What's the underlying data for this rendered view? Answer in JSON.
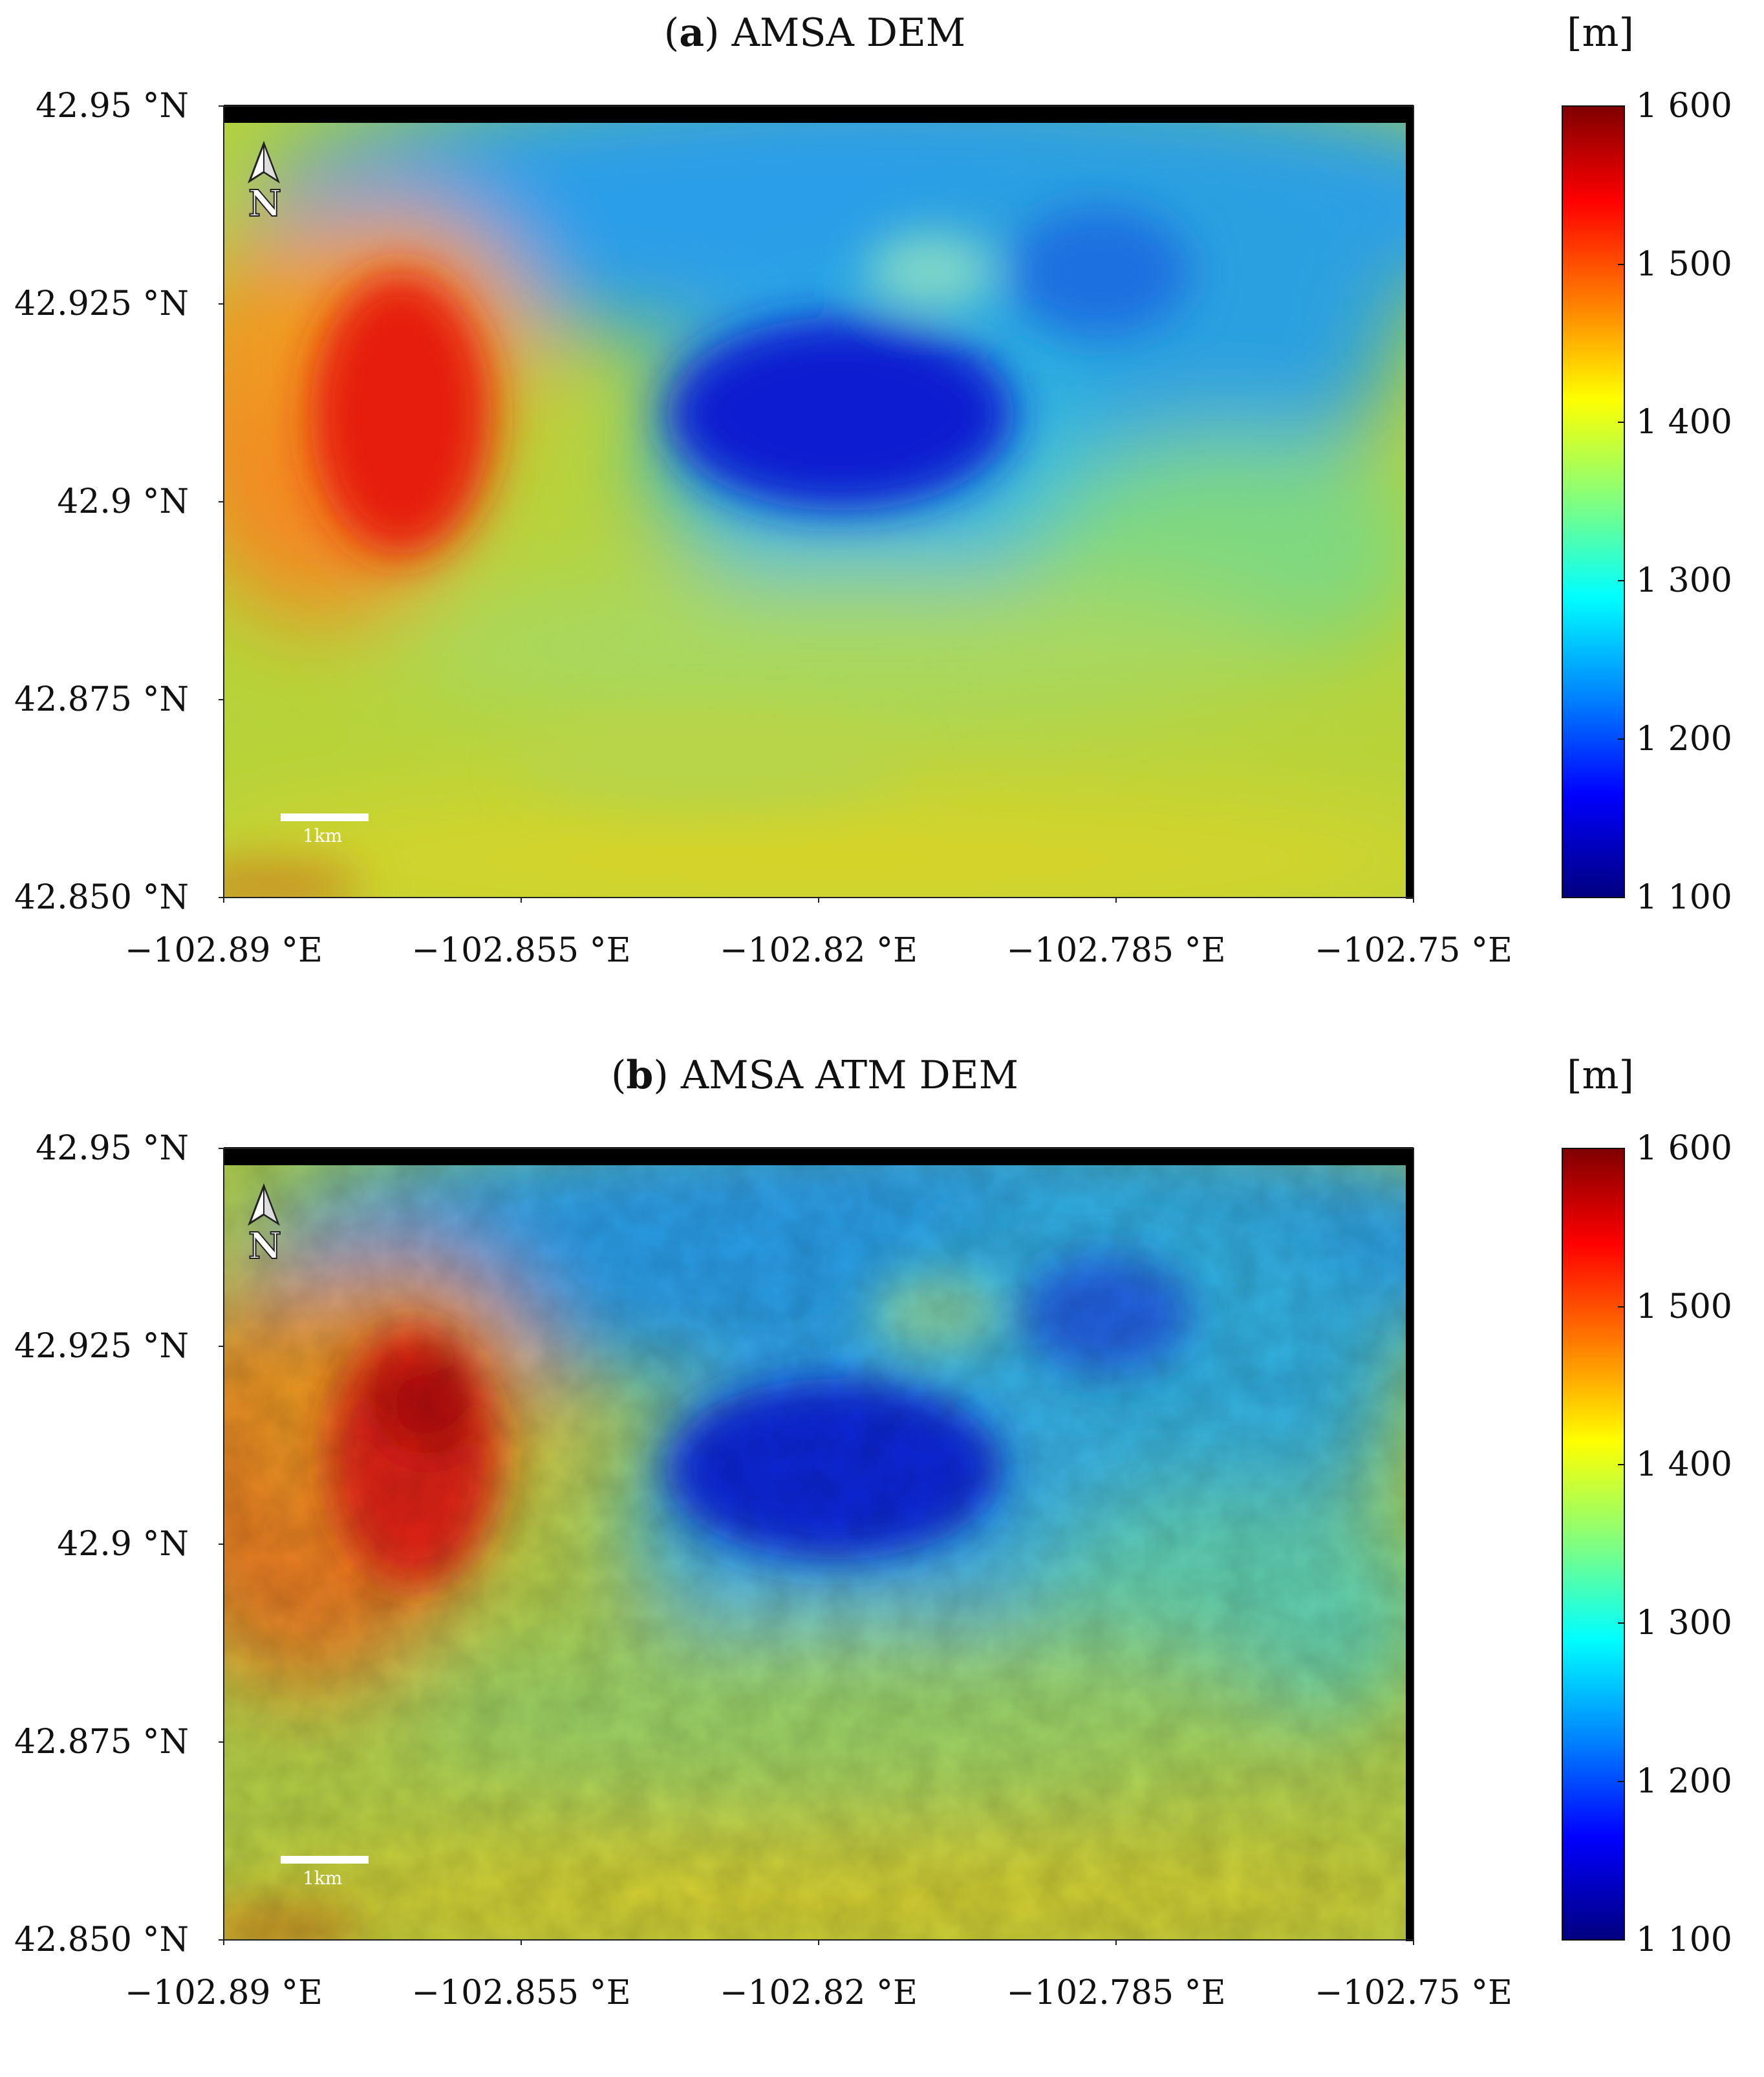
{
  "maps": [
    {
      "id": "a",
      "title_letter": "a",
      "title_text": "AMSA DEM",
      "variant": "smooth"
    },
    {
      "id": "b",
      "title_letter": "b",
      "title_text": "AMSA ATM DEM",
      "variant": "rough"
    }
  ],
  "y_ticks": [
    "42.95 °N",
    "42.925 °N",
    "42.9 °N",
    "42.875 °N",
    "42.850 °N"
  ],
  "x_ticks": [
    "−102.89 °E",
    "−102.855 °E",
    "−102.82 °E",
    "−102.785 °E",
    "−102.75 °E"
  ],
  "colorbar": {
    "unit": "[m]",
    "ticks": [
      "1 600",
      "1 500",
      "1 400",
      "1 300",
      "1 200",
      "1 100"
    ],
    "range": [
      1100,
      1600
    ],
    "colors": [
      "#7f0000",
      "#ff0000",
      "#ff8000",
      "#ffff00",
      "#80ff80",
      "#00ffff",
      "#0080ff",
      "#0000ff",
      "#00007f"
    ]
  },
  "north_arrow": "N",
  "scale_bar": "1km"
}
